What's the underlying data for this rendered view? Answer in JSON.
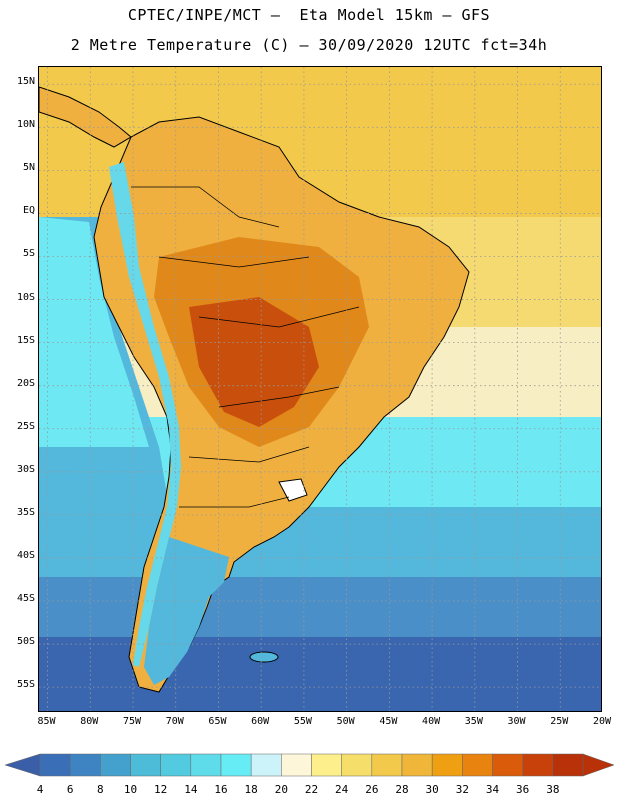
{
  "title": {
    "line1": "CPTEC/INPE/MCT –  Eta Model 15km – GFS",
    "line2": "2 Metre Temperature (C) – 30/09/2020 12UTC fct=34h"
  },
  "map": {
    "lat_labels": [
      "15N",
      "10N",
      "5N",
      "EQ",
      "5S",
      "10S",
      "15S",
      "20S",
      "25S",
      "30S",
      "35S",
      "40S",
      "45S",
      "50S",
      "55S"
    ],
    "lon_labels": [
      "85W",
      "80W",
      "75W",
      "70W",
      "65W",
      "60W",
      "55W",
      "50W",
      "45W",
      "40W",
      "35W",
      "30W",
      "25W",
      "20W"
    ],
    "lat_range": [
      17,
      -58
    ],
    "lon_range": [
      -86,
      -20
    ],
    "grid": "dotted"
  },
  "colorbar": {
    "levels": [
      "4",
      "6",
      "8",
      "10",
      "12",
      "14",
      "16",
      "18",
      "20",
      "22",
      "24",
      "26",
      "28",
      "30",
      "32",
      "34",
      "36",
      "38"
    ],
    "colors": [
      "#3a6fb8",
      "#3f84c2",
      "#44a0cc",
      "#4dbcd8",
      "#52cbe0",
      "#5fdcea",
      "#66ecf4",
      "#cdf3fa",
      "#fdf6d8",
      "#fdf08c",
      "#f5de6a",
      "#f2c94a",
      "#efb63a",
      "#ee9f12",
      "#e8830f",
      "#da5c0a",
      "#c8400a",
      "#b83108"
    ],
    "under_color": "#3a5fa8",
    "over_color": "#b83108"
  },
  "colors": {
    "ocean_deep": "#3a66b0",
    "ocean_mid": "#4a8fc8",
    "ocean_cool": "#53b8dc",
    "ocean_cyan": "#6ee8f2",
    "ocean_pale": "#f8eec4",
    "ocean_warm": "#f5da72",
    "ocean_warmer": "#f2c94a",
    "land_warm": "#efb040",
    "land_hot": "#e0881a",
    "land_hottest": "#c8500c",
    "andes": "#66d8ea",
    "coast": "#000000"
  }
}
